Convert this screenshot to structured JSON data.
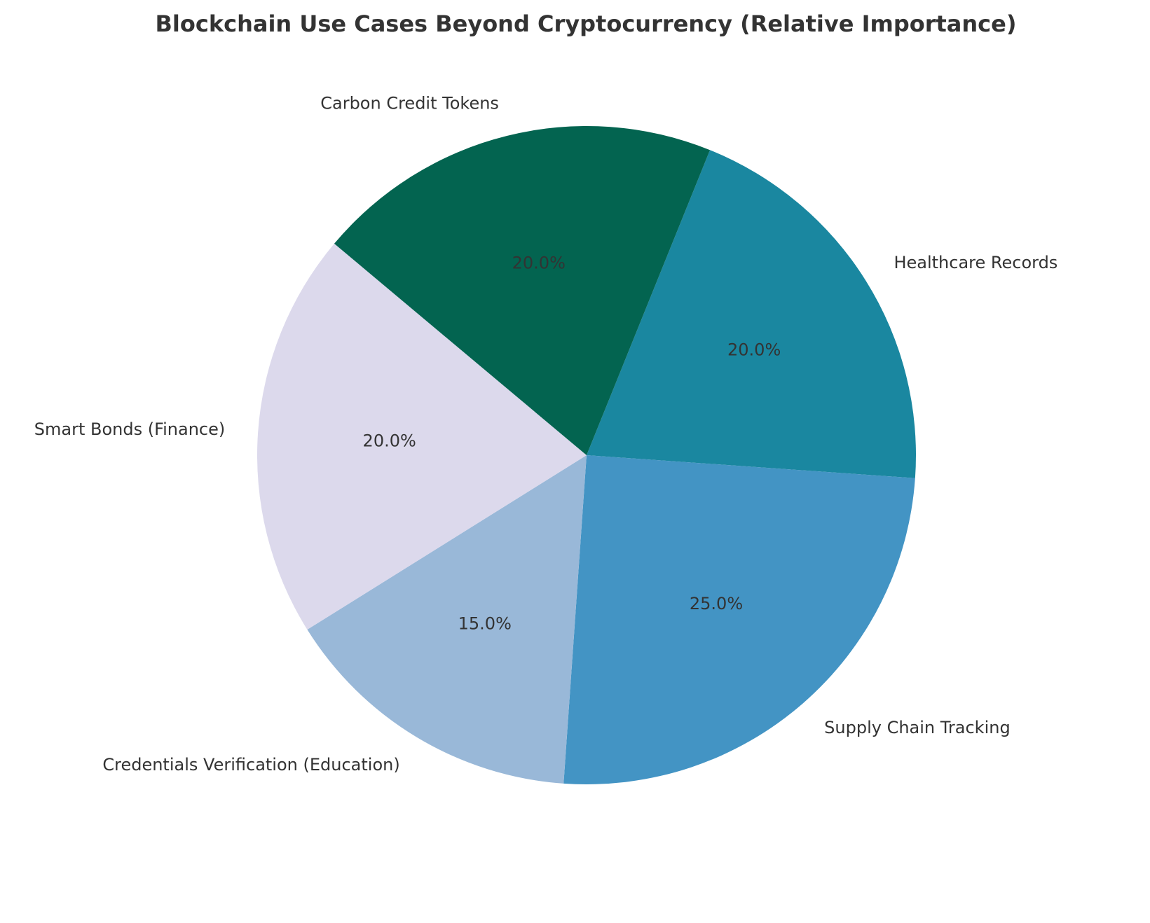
{
  "chart_data": {
    "type": "pie",
    "title": "Blockchain Use Cases Beyond Cryptocurrency (Relative Importance)",
    "categories": [
      "Healthcare Records",
      "Supply Chain Tracking",
      "Credentials Verification (Education)",
      "Smart Bonds (Finance)",
      "Carbon Credit Tokens"
    ],
    "values": [
      20,
      25,
      15,
      20,
      20
    ],
    "value_labels": [
      "20.0%",
      "25.0%",
      "15.0%",
      "20.0%",
      "20.0%"
    ],
    "colors": [
      "#1a87a0",
      "#4394c4",
      "#99b8d8",
      "#dcd9ec",
      "#036450"
    ],
    "startangle": 68,
    "counterclock": false
  }
}
